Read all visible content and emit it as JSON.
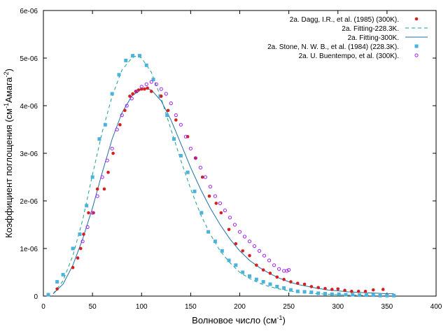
{
  "chart_data": {
    "type": "scatter",
    "xlabel": "Волновое число (см",
    "xlabel_sup": "-1",
    "xlabel_end": ")",
    "ylabel_parts": [
      "Коэффициент поглощения (см",
      "-1",
      "Амага",
      "-2",
      ")"
    ],
    "xlim": [
      0,
      400
    ],
    "ylim": [
      0,
      6e-06
    ],
    "x_ticks": [
      0,
      50,
      100,
      150,
      200,
      250,
      300,
      350,
      400
    ],
    "x_tick_labels": [
      "0",
      "50",
      "100",
      "150",
      "200",
      "250",
      "300",
      "350",
      "400"
    ],
    "y_ticks": [
      0,
      1e-06,
      2e-06,
      3e-06,
      4e-06,
      5e-06,
      6e-06
    ],
    "y_tick_labels": [
      "0",
      "1e-06",
      "2e-06",
      "3e-06",
      "4e-06",
      "5e-06",
      "6e-06"
    ],
    "legend_position": "top-right",
    "grid": false,
    "series": [
      {
        "name": "2a. Dagg, I.R., et al. (1985) (300K).",
        "style": "filled-circle",
        "color": "#d62020",
        "x": [
          14,
          30,
          35,
          38,
          41,
          46,
          51,
          55,
          62,
          66,
          71,
          78,
          83,
          88,
          91,
          94,
          97,
          100,
          103,
          106,
          110,
          120,
          127,
          135,
          147,
          155,
          162,
          169,
          176,
          181,
          189,
          196,
          203,
          210,
          217,
          224,
          231,
          238,
          245,
          252,
          259,
          266,
          273,
          280,
          287,
          294,
          300,
          307,
          314,
          321,
          328,
          336,
          346
        ],
        "y": [
          1.5e-07,
          6e-07,
          8e-07,
          1e-06,
          1.3e-06,
          1.75e-06,
          1.75e-06,
          2.25e-06,
          2.25e-06,
          2.6e-06,
          3e-06,
          3.6e-06,
          3.9e-06,
          4.2e-06,
          4.25e-06,
          4.3e-06,
          4.33e-06,
          4.35e-06,
          4.35e-06,
          4.37e-06,
          4.3e-06,
          4.2e-06,
          3.9e-06,
          3.7e-06,
          3.35e-06,
          2.9e-06,
          2.5e-06,
          2.1e-06,
          1.95e-06,
          1.75e-06,
          1.4e-06,
          1.1e-06,
          9.5e-07,
          8.5e-07,
          6.5e-07,
          5.5e-07,
          4.8e-07,
          4e-07,
          3.5e-07,
          3e-07,
          2.7e-07,
          2.5e-07,
          2e-07,
          1.8e-07,
          1.6e-07,
          1.4e-07,
          1.5e-07,
          1.2e-07,
          1e-07,
          1e-07,
          1e-07,
          1.3e-07,
          1.4e-07
        ]
      },
      {
        "name": "2a. Fitting-228.3K.",
        "style": "dashed-line",
        "color": "#1aa08a",
        "x": [
          10,
          20,
          30,
          40,
          50,
          60,
          70,
          80,
          90,
          95,
          100,
          110,
          120,
          130,
          140,
          150,
          160,
          170,
          180,
          190,
          200,
          210,
          220,
          230,
          240,
          250,
          260,
          270,
          280,
          290,
          300,
          310,
          320,
          330,
          340,
          350
        ],
        "y": [
          5e-08,
          3.2e-07,
          8.5e-07,
          1.6e-06,
          2.55e-06,
          3.45e-06,
          4.2e-06,
          4.75e-06,
          5e-06,
          5.05e-06,
          5e-06,
          4.7e-06,
          4.15e-06,
          3.5e-06,
          2.85e-06,
          2.25e-06,
          1.72e-06,
          1.3e-06,
          9.5e-07,
          7e-07,
          5e-07,
          3.7e-07,
          2.7e-07,
          2e-07,
          1.5e-07,
          1.1e-07,
          8e-08,
          6e-08,
          5e-08,
          4e-08,
          3e-08,
          2e-08,
          2e-08,
          1e-08,
          1e-08,
          1e-08
        ]
      },
      {
        "name": "2a. Fitting-300K.",
        "style": "solid-line",
        "color": "#1f6fa8",
        "x": [
          10,
          20,
          30,
          40,
          50,
          60,
          70,
          80,
          90,
          100,
          105,
          110,
          120,
          130,
          140,
          150,
          160,
          170,
          180,
          190,
          200,
          210,
          220,
          230,
          240,
          250,
          260,
          270,
          280,
          290,
          300,
          310,
          320,
          330,
          340,
          350,
          357
        ],
        "y": [
          5e-08,
          2.5e-07,
          6.5e-07,
          1.2e-06,
          1.85e-06,
          2.6e-06,
          3.3e-06,
          3.85e-06,
          4.2e-06,
          4.35e-06,
          4.36e-06,
          4.33e-06,
          4.1e-06,
          3.7e-06,
          3.2e-06,
          2.7e-06,
          2.25e-06,
          1.85e-06,
          1.5e-06,
          1.2e-06,
          9.5e-07,
          7.5e-07,
          6e-07,
          4.8e-07,
          3.8e-07,
          3e-07,
          2.4e-07,
          2e-07,
          1.6e-07,
          1.3e-07,
          1.1e-07,
          9e-08,
          8e-08,
          7e-08,
          6e-08,
          5e-08,
          5e-08
        ]
      },
      {
        "name": "2a. Stone, N. W. B., et al. (1984) (228.3K).",
        "style": "filled-square",
        "color": "#4ab2dc",
        "x": [
          5,
          14,
          20,
          30,
          37,
          44,
          50,
          57,
          63,
          70,
          77,
          84,
          91,
          98,
          105,
          112,
          119,
          126,
          133,
          140,
          147,
          154,
          161,
          168,
          175,
          182,
          189,
          196,
          203,
          210,
          217,
          224,
          231,
          238,
          245,
          252,
          259,
          266,
          273,
          280,
          287,
          294,
          301,
          308,
          315,
          322,
          329,
          336,
          343,
          350,
          357
        ],
        "y": [
          3e-08,
          3e-07,
          4.5e-07,
          1e-06,
          1.3e-06,
          1.9e-06,
          2.5e-06,
          3.3e-06,
          3.6e-06,
          4.25e-06,
          4.65e-06,
          4.95e-06,
          5.05e-06,
          5.05e-06,
          4.85e-06,
          4.55e-06,
          4.2e-06,
          3.8e-06,
          3.3e-06,
          2.95e-06,
          2.6e-06,
          2.2e-06,
          1.75e-06,
          1.35e-06,
          1.15e-06,
          9.5e-07,
          7.5e-07,
          6.5e-07,
          5e-07,
          4.2e-07,
          3.5e-07,
          3e-07,
          2.5e-07,
          2e-07,
          1.7e-07,
          1.3e-07,
          1e-07,
          9e-08,
          8e-08,
          6e-08,
          5e-08,
          4e-08,
          4e-08,
          3e-08,
          3e-08,
          2e-08,
          2e-08,
          2e-08,
          1e-08,
          1e-08,
          1e-08
        ]
      },
      {
        "name": "2a. U. Buentempo, et al. (300K).",
        "style": "open-circle",
        "color": "#a020f0",
        "x": [
          40,
          45,
          50,
          55,
          60,
          65,
          70,
          75,
          80,
          85,
          90,
          95,
          100,
          105,
          110,
          115,
          120,
          125,
          130,
          135,
          140,
          145,
          150,
          155,
          160,
          165,
          170,
          175,
          180,
          185,
          190,
          195,
          200,
          205,
          210,
          215,
          220,
          225,
          230,
          235,
          240,
          245,
          248,
          250
        ],
        "y": [
          1.15e-06,
          1.45e-06,
          1.75e-06,
          2.1e-06,
          2.5e-06,
          2.85e-06,
          3.1e-06,
          3.5e-06,
          3.8e-06,
          4e-06,
          4.15e-06,
          4.3e-06,
          4.4e-06,
          4.45e-06,
          4.5e-06,
          4.45e-06,
          4.35e-06,
          4.25e-06,
          4.05e-06,
          3.8e-06,
          3.6e-06,
          3.35e-06,
          3.1e-06,
          2.9e-06,
          2.7e-06,
          2.5e-06,
          2.3e-06,
          2.1e-06,
          1.95e-06,
          1.8e-06,
          1.65e-06,
          1.5e-06,
          1.35e-06,
          1.25e-06,
          1.15e-06,
          1.05e-06,
          9.5e-07,
          8.5e-07,
          7.5e-07,
          6.5e-07,
          5.7e-07,
          5.3e-07,
          5.3e-07,
          5.5e-07
        ]
      }
    ]
  }
}
